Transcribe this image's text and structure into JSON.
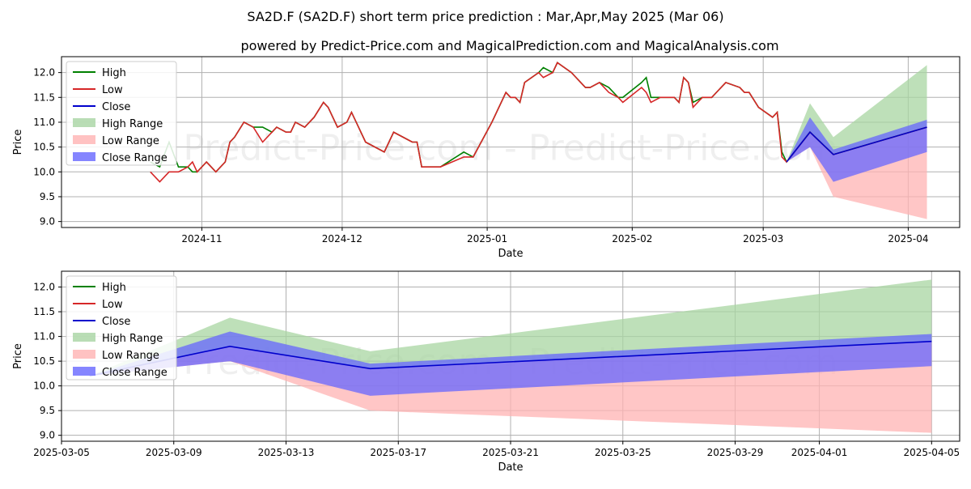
{
  "title": "SA2D.F (SA2D.F) short term price prediction : Mar,Apr,May 2025 (Mar 06)",
  "subtitle": "powered by Predict-Price.com and MagicalPrediction.com and MagicalAnalysis.com",
  "watermark": "Predict-Price.com - Predict-Price.com",
  "colors": {
    "high": "#008000",
    "low": "#d62728",
    "close": "#0000cc",
    "high_range": "#a8d5a2",
    "low_range": "#ffb3b3",
    "close_range": "#6666ff"
  },
  "chart_data": [
    {
      "type": "line",
      "xlabel": "Date",
      "ylabel": "Price",
      "xlim": [
        "2024-10-02",
        "2025-04-12"
      ],
      "ylim": [
        8.88,
        12.32
      ],
      "grid": true,
      "legend_position": "top-left",
      "x_ticks": [
        {
          "date": "2024-11-01",
          "label": "2024-11"
        },
        {
          "date": "2024-12-01",
          "label": "2024-12"
        },
        {
          "date": "2025-01-01",
          "label": "2025-01"
        },
        {
          "date": "2025-02-01",
          "label": "2025-02"
        },
        {
          "date": "2025-03-01",
          "label": "2025-03"
        },
        {
          "date": "2025-04-01",
          "label": "2025-04"
        }
      ],
      "y_ticks": [
        9.0,
        9.5,
        10.0,
        10.5,
        11.0,
        11.5,
        12.0
      ],
      "legend": [
        "High",
        "Low",
        "Close",
        "High Range",
        "Low Range",
        "Close Range"
      ],
      "series": [
        {
          "name": "High",
          "x": [
            "2024-10-21",
            "2024-10-23",
            "2024-10-25",
            "2024-10-27",
            "2024-10-29",
            "2024-10-30",
            "2024-10-31",
            "2024-11-02",
            "2024-11-04",
            "2024-11-06",
            "2024-11-07",
            "2024-11-08",
            "2024-11-10",
            "2024-11-12",
            "2024-11-14",
            "2024-11-16",
            "2024-11-17",
            "2024-11-19",
            "2024-11-20",
            "2024-11-21",
            "2024-11-23",
            "2024-11-25",
            "2024-11-27",
            "2024-11-28",
            "2024-11-30",
            "2024-12-02",
            "2024-12-03",
            "2024-12-04",
            "2024-12-06",
            "2024-12-10",
            "2024-12-12",
            "2024-12-14",
            "2024-12-16",
            "2024-12-17",
            "2024-12-18",
            "2024-12-22",
            "2024-12-27",
            "2024-12-29",
            "2025-01-02",
            "2025-01-05",
            "2025-01-06",
            "2025-01-07",
            "2025-01-08",
            "2025-01-09",
            "2025-01-12",
            "2025-01-13",
            "2025-01-15",
            "2025-01-16",
            "2025-01-19",
            "2025-01-20",
            "2025-01-21",
            "2025-01-22",
            "2025-01-23",
            "2025-01-25",
            "2025-01-27",
            "2025-01-29",
            "2025-01-30",
            "2025-02-03",
            "2025-02-04",
            "2025-02-05",
            "2025-02-07",
            "2025-02-10",
            "2025-02-11",
            "2025-02-12",
            "2025-02-13",
            "2025-02-14",
            "2025-02-16",
            "2025-02-17",
            "2025-02-18",
            "2025-02-20",
            "2025-02-21",
            "2025-02-24",
            "2025-02-25",
            "2025-02-26",
            "2025-02-28",
            "2025-03-03",
            "2025-03-04",
            "2025-03-05",
            "2025-03-06",
            "2025-03-11",
            "2025-03-16",
            "2025-04-05"
          ],
          "y": [
            10.2,
            10.1,
            10.6,
            10.1,
            10.1,
            10.0,
            10.0,
            10.2,
            10.0,
            10.2,
            10.6,
            10.7,
            11.0,
            10.9,
            10.9,
            10.8,
            10.9,
            10.8,
            10.8,
            11.0,
            10.9,
            11.1,
            11.4,
            11.3,
            10.9,
            11.0,
            11.2,
            11.0,
            10.6,
            10.4,
            10.8,
            10.7,
            10.6,
            10.6,
            10.1,
            10.1,
            10.4,
            10.3,
            11.0,
            11.6,
            11.5,
            11.5,
            11.4,
            11.8,
            12.0,
            12.1,
            12.0,
            12.2,
            12.0,
            11.9,
            11.8,
            11.7,
            11.7,
            11.8,
            11.7,
            11.5,
            11.5,
            11.8,
            11.9,
            11.5,
            11.5,
            11.5,
            11.4,
            11.9,
            11.8,
            11.4,
            11.5,
            11.5,
            11.5,
            11.7,
            11.8,
            11.7,
            11.6,
            11.6,
            11.3,
            11.1,
            11.2,
            10.4,
            10.2,
            10.8,
            10.35,
            10.9
          ]
        },
        {
          "name": "Low",
          "x": [
            "2024-10-21",
            "2024-10-23",
            "2024-10-25",
            "2024-10-27",
            "2024-10-29",
            "2024-10-30",
            "2024-10-31",
            "2024-11-02",
            "2024-11-04",
            "2024-11-06",
            "2024-11-07",
            "2024-11-08",
            "2024-11-10",
            "2024-11-12",
            "2024-11-14",
            "2024-11-16",
            "2024-11-17",
            "2024-11-19",
            "2024-11-20",
            "2024-11-21",
            "2024-11-23",
            "2024-11-25",
            "2024-11-27",
            "2024-11-28",
            "2024-11-30",
            "2024-12-02",
            "2024-12-03",
            "2024-12-04",
            "2024-12-06",
            "2024-12-10",
            "2024-12-12",
            "2024-12-14",
            "2024-12-16",
            "2024-12-17",
            "2024-12-18",
            "2024-12-22",
            "2024-12-27",
            "2024-12-29",
            "2025-01-02",
            "2025-01-05",
            "2025-01-06",
            "2025-01-07",
            "2025-01-08",
            "2025-01-09",
            "2025-01-12",
            "2025-01-13",
            "2025-01-15",
            "2025-01-16",
            "2025-01-19",
            "2025-01-20",
            "2025-01-21",
            "2025-01-22",
            "2025-01-23",
            "2025-01-25",
            "2025-01-27",
            "2025-01-29",
            "2025-01-30",
            "2025-02-03",
            "2025-02-04",
            "2025-02-05",
            "2025-02-07",
            "2025-02-10",
            "2025-02-11",
            "2025-02-12",
            "2025-02-13",
            "2025-02-14",
            "2025-02-16",
            "2025-02-17",
            "2025-02-18",
            "2025-02-20",
            "2025-02-21",
            "2025-02-24",
            "2025-02-25",
            "2025-02-26",
            "2025-02-28",
            "2025-03-03",
            "2025-03-04",
            "2025-03-05",
            "2025-03-06",
            "2025-03-11",
            "2025-03-16",
            "2025-04-05"
          ],
          "y": [
            10.0,
            9.8,
            10.0,
            10.0,
            10.1,
            10.2,
            10.0,
            10.2,
            10.0,
            10.2,
            10.6,
            10.7,
            11.0,
            10.9,
            10.6,
            10.8,
            10.9,
            10.8,
            10.8,
            11.0,
            10.9,
            11.1,
            11.4,
            11.3,
            10.9,
            11.0,
            11.2,
            11.0,
            10.6,
            10.4,
            10.8,
            10.7,
            10.6,
            10.6,
            10.1,
            10.1,
            10.3,
            10.3,
            11.0,
            11.6,
            11.5,
            11.5,
            11.4,
            11.8,
            12.0,
            11.9,
            12.0,
            12.2,
            12.0,
            11.9,
            11.8,
            11.7,
            11.7,
            11.8,
            11.6,
            11.5,
            11.4,
            11.7,
            11.6,
            11.4,
            11.5,
            11.5,
            11.4,
            11.9,
            11.8,
            11.3,
            11.5,
            11.5,
            11.5,
            11.7,
            11.8,
            11.7,
            11.6,
            11.6,
            11.3,
            11.1,
            11.2,
            10.3,
            10.2,
            10.8,
            10.35,
            10.9
          ]
        },
        {
          "name": "Close",
          "x": [
            "2025-03-06",
            "2025-03-11",
            "2025-03-16",
            "2025-04-05"
          ],
          "y": [
            10.2,
            10.8,
            10.35,
            10.9
          ]
        },
        {
          "name": "High Range",
          "x": [
            "2025-03-06",
            "2025-03-11",
            "2025-03-16",
            "2025-04-05"
          ],
          "y_low": [
            10.2,
            10.8,
            10.35,
            10.9
          ],
          "y_high": [
            10.2,
            11.38,
            10.7,
            12.15
          ]
        },
        {
          "name": "Low Range",
          "x": [
            "2025-03-06",
            "2025-03-11",
            "2025-03-16",
            "2025-04-05"
          ],
          "y_low": [
            10.2,
            10.5,
            9.5,
            9.05
          ],
          "y_high": [
            10.2,
            10.8,
            10.35,
            10.9
          ]
        },
        {
          "name": "Close Range",
          "x": [
            "2025-03-06",
            "2025-03-11",
            "2025-03-16",
            "2025-04-05"
          ],
          "y_low": [
            10.2,
            10.5,
            9.8,
            10.4
          ],
          "y_high": [
            10.2,
            11.1,
            10.45,
            11.05
          ]
        }
      ]
    },
    {
      "type": "line",
      "xlabel": "Date",
      "ylabel": "Price",
      "xlim": [
        "2025-03-05",
        "2025-04-06"
      ],
      "ylim": [
        8.88,
        12.32
      ],
      "grid": true,
      "legend_position": "top-left",
      "x_ticks": [
        {
          "date": "2025-03-05",
          "label": "2025-03-05"
        },
        {
          "date": "2025-03-09",
          "label": "2025-03-09"
        },
        {
          "date": "2025-03-13",
          "label": "2025-03-13"
        },
        {
          "date": "2025-03-17",
          "label": "2025-03-17"
        },
        {
          "date": "2025-03-21",
          "label": "2025-03-21"
        },
        {
          "date": "2025-03-25",
          "label": "2025-03-25"
        },
        {
          "date": "2025-03-29",
          "label": "2025-03-29"
        },
        {
          "date": "2025-04-01",
          "label": "2025-04-01"
        },
        {
          "date": "2025-04-05",
          "label": "2025-04-05"
        }
      ],
      "y_ticks": [
        9.0,
        9.5,
        10.0,
        10.5,
        11.0,
        11.5,
        12.0
      ],
      "legend": [
        "High",
        "Low",
        "Close",
        "High Range",
        "Low Range",
        "Close Range"
      ],
      "series": [
        {
          "name": "Close",
          "x": [
            "2025-03-06",
            "2025-03-11",
            "2025-03-16",
            "2025-04-05"
          ],
          "y": [
            10.2,
            10.8,
            10.35,
            10.9
          ]
        },
        {
          "name": "High Range",
          "x": [
            "2025-03-06",
            "2025-03-11",
            "2025-03-16",
            "2025-04-05"
          ],
          "y_low": [
            10.2,
            10.8,
            10.35,
            10.9
          ],
          "y_high": [
            10.2,
            11.38,
            10.7,
            12.15
          ]
        },
        {
          "name": "Low Range",
          "x": [
            "2025-03-06",
            "2025-03-11",
            "2025-03-16",
            "2025-04-05"
          ],
          "y_low": [
            10.2,
            10.5,
            9.5,
            9.05
          ],
          "y_high": [
            10.2,
            10.8,
            10.35,
            10.9
          ]
        },
        {
          "name": "Close Range",
          "x": [
            "2025-03-06",
            "2025-03-11",
            "2025-03-16",
            "2025-04-05"
          ],
          "y_low": [
            10.2,
            10.5,
            9.8,
            10.4
          ],
          "y_high": [
            10.2,
            11.1,
            10.45,
            11.05
          ]
        }
      ]
    }
  ]
}
